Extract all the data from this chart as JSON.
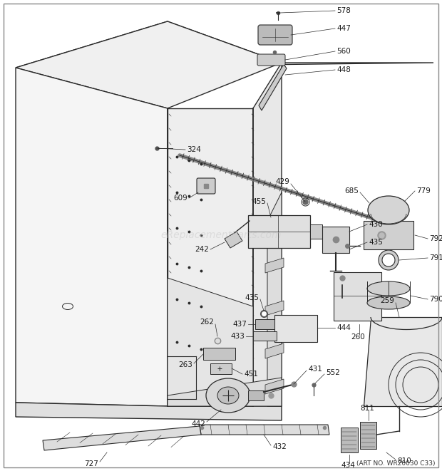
{
  "art_no": "(ART NO. WR20030 C33)",
  "watermark": "eReplacementParts.com",
  "bg": "#ffffff",
  "lc": "#2a2a2a",
  "figsize": [
    6.2,
    6.61
  ],
  "dpi": 100,
  "border_color": "#888888",
  "label_fs": 7.5,
  "label_color": "#1a1a1a"
}
